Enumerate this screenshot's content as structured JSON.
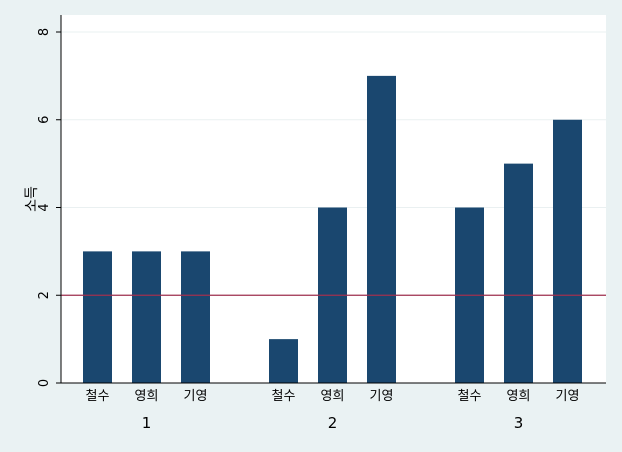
{
  "chart_data": {
    "type": "bar",
    "ylabel": "소득",
    "ylim": [
      0,
      8
    ],
    "yticks": [
      0,
      2,
      4,
      6,
      8
    ],
    "grid": true,
    "reference_line": {
      "y": 2,
      "color": "#a0304f"
    },
    "bar_color": "#1a476f",
    "groups": [
      {
        "label": "1",
        "categories": [
          "철수",
          "영희",
          "기영"
        ],
        "values": [
          3,
          3,
          3
        ]
      },
      {
        "label": "2",
        "categories": [
          "철수",
          "영희",
          "기영"
        ],
        "values": [
          1,
          4,
          7
        ]
      },
      {
        "label": "3",
        "categories": [
          "철수",
          "영희",
          "기영"
        ],
        "values": [
          4,
          5,
          6
        ]
      }
    ]
  }
}
